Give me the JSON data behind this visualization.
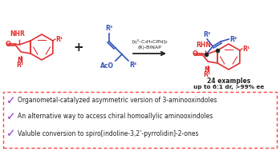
{
  "bg_color": "#ffffff",
  "box_color": "#ff4444",
  "checkmark_color": "#9932CC",
  "bullet_lines": [
    "Organometal-catalyzed asymmetric version of 3-aminooxindoles",
    "An alternative way to access chiral homoallylic aminooxindoles",
    "Valuble conversion to spiro[indoline-3,2’-pyrrolidin]-2-ones"
  ],
  "examples_text": "24 examples",
  "dr_ee_text": "up to 6:1 dr, >99% ee",
  "catalyst_line1": "[η³–C₃H₅ClPd]₂",
  "catalyst_line2": "(R)-BINAP",
  "red_color": "#e03030",
  "blue_color": "#3355bb",
  "black_color": "#222222"
}
